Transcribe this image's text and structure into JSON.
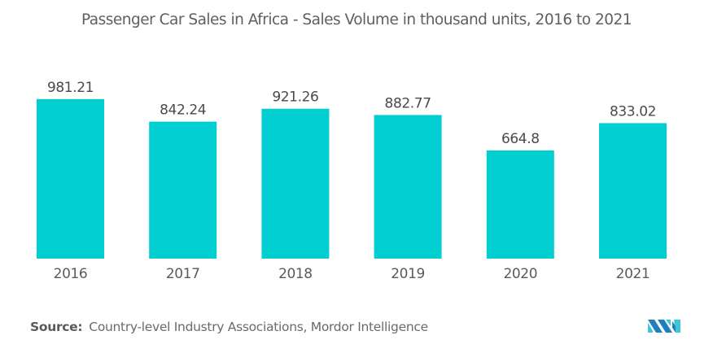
{
  "chart_data": {
    "type": "bar",
    "title": "Passenger Car Sales in Africa - Sales Volume in thousand units, 2016 to 2021",
    "xlabel": "",
    "ylabel": "",
    "categories": [
      "2016",
      "2017",
      "2018",
      "2019",
      "2020",
      "2021"
    ],
    "values": [
      981.21,
      842.24,
      921.26,
      882.77,
      664.8,
      833.02
    ],
    "value_labels": [
      "981.21",
      "842.24",
      "921.26",
      "882.77",
      "664.8",
      "833.02"
    ],
    "ylim": [
      0,
      1000
    ],
    "grid": false,
    "legend": "none",
    "bar_color": "#00CED1"
  },
  "source": {
    "label": "Source:",
    "text": "Country-level Industry Associations, Mordor Intelligence"
  },
  "logo": {
    "icon": "mordor-intelligence-logo-icon",
    "colors": [
      "#1f7fbf",
      "#3fc6d6"
    ]
  }
}
